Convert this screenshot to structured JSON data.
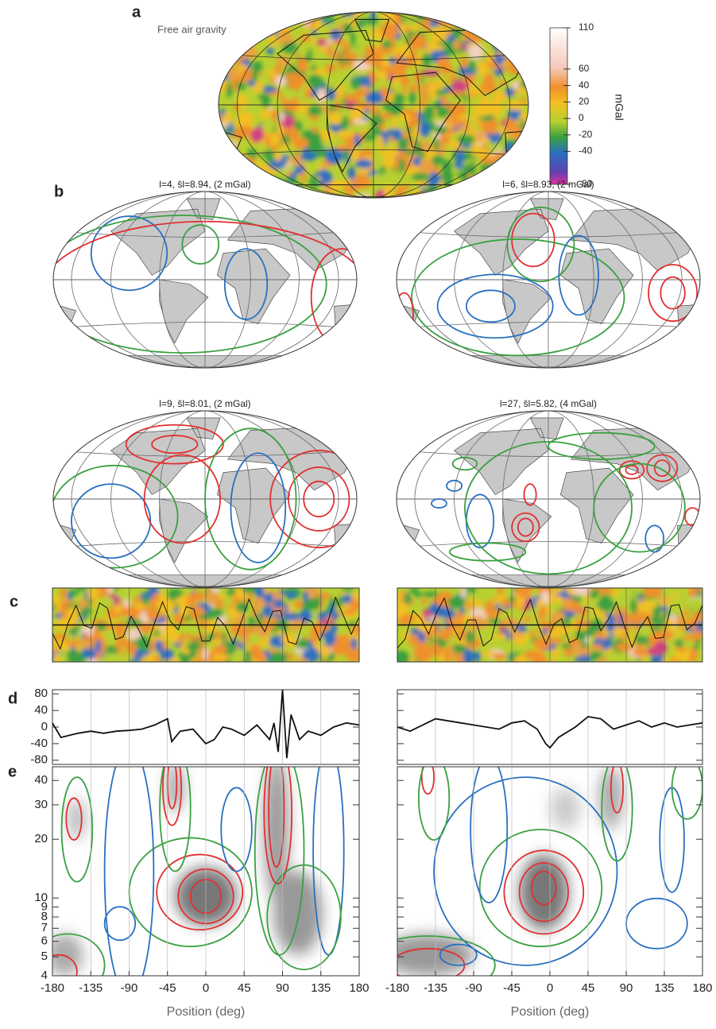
{
  "labels": {
    "a": "a",
    "b": "b",
    "c": "c",
    "d": "d",
    "e": "e"
  },
  "map_a": {
    "title": "Free air gravity",
    "colorbar_label": "mGal",
    "colorbar_lim": [
      -80,
      110
    ],
    "colorbar_ticks": [
      110,
      60,
      40,
      20,
      0,
      -20,
      -40,
      -80
    ]
  },
  "maps_b": [
    {
      "title": "l=4, ŝl=8.94, (2 mGal)"
    },
    {
      "title": "l=6, ŝl=8.93, (2 mGal)"
    },
    {
      "title": "l=9, ŝl=8.01, (2 mGal)"
    },
    {
      "title": "l=27, ŝl=5.82, (4 mGal)"
    }
  ],
  "panel_d": {
    "xlim": [
      -180,
      180
    ],
    "ylim": [
      -90,
      90
    ],
    "yticks": [
      80,
      40,
      0,
      -40,
      -80
    ],
    "profiles": [
      {
        "x": [
          -180,
          -170,
          -160,
          -150,
          -135,
          -120,
          -105,
          -90,
          -75,
          -60,
          -50,
          -45,
          -40,
          -30,
          -15,
          0,
          10,
          20,
          30,
          45,
          60,
          75,
          80,
          85,
          90,
          95,
          100,
          110,
          120,
          135,
          150,
          165,
          180
        ],
        "values": [
          10,
          -25,
          -20,
          -15,
          -10,
          -15,
          -10,
          -8,
          -5,
          5,
          15,
          20,
          -35,
          -10,
          -5,
          -40,
          -30,
          0,
          -5,
          -20,
          5,
          -30,
          10,
          -60,
          90,
          -75,
          30,
          -30,
          -10,
          -20,
          0,
          10,
          5
        ]
      },
      {
        "x": [
          -180,
          -165,
          -150,
          -135,
          -120,
          -105,
          -90,
          -75,
          -60,
          -45,
          -30,
          -15,
          -5,
          0,
          10,
          30,
          45,
          60,
          75,
          90,
          105,
          120,
          135,
          150,
          165,
          180
        ],
        "values": [
          0,
          -10,
          5,
          20,
          15,
          10,
          5,
          0,
          -5,
          10,
          15,
          -5,
          -40,
          -50,
          -25,
          0,
          25,
          20,
          -5,
          5,
          15,
          0,
          10,
          0,
          5,
          10
        ]
      }
    ]
  },
  "panel_e": {
    "xlim": [
      -180,
      180
    ],
    "xticks": [
      -180,
      -135,
      -90,
      -45,
      0,
      45,
      90,
      135,
      180
    ],
    "ylim": [
      4,
      47
    ],
    "log_scale": true,
    "yticks": [
      4,
      5,
      6,
      7,
      8,
      9,
      10,
      20,
      30,
      40
    ],
    "xlabel": "Position (deg)"
  }
}
